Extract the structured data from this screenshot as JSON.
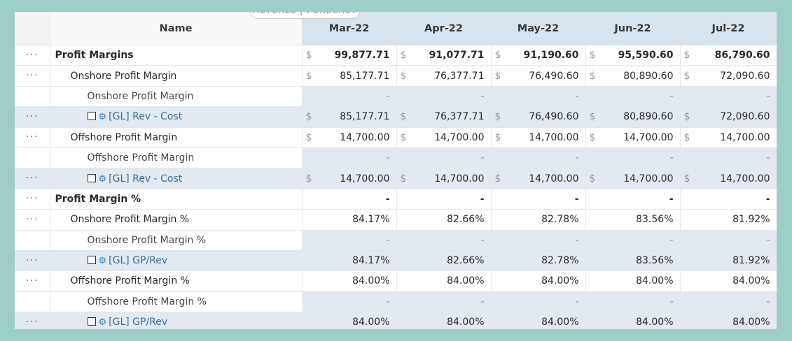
{
  "toggle": {
    "label": "ACTUALS | FORECAST"
  },
  "header": {
    "name_label": "Name",
    "months": [
      "Mar-22",
      "Apr-22",
      "May-22",
      "Jun-22",
      "Jul-22"
    ]
  },
  "row_menu_label": "···",
  "currency_symbol": "$",
  "rows": [
    {
      "label": "Profit Margins",
      "level": 0,
      "menu": true,
      "style": "plain",
      "currency": true,
      "bold": true,
      "values": [
        "99,877.71",
        "91,077.71",
        "91,190.60",
        "95,590.60",
        "86,790.60"
      ]
    },
    {
      "label": "Onshore Profit Margin",
      "level": 1,
      "menu": true,
      "style": "plain",
      "currency": true,
      "bold": false,
      "values": [
        "85,177.71",
        "76,377.71",
        "76,490.60",
        "80,890.60",
        "72,090.60"
      ]
    },
    {
      "label": "Onshore Profit Margin",
      "level": 2,
      "menu": false,
      "style": "sub",
      "currency": false,
      "bold": false,
      "values": [
        "-",
        "-",
        "-",
        "-",
        "-"
      ]
    },
    {
      "label": "[GL] Rev - Cost",
      "level": 3,
      "menu": true,
      "style": "blue",
      "currency": true,
      "bold": false,
      "values": [
        "85,177.71",
        "76,377.71",
        "76,490.60",
        "80,890.60",
        "72,090.60"
      ]
    },
    {
      "label": "Offshore Profit Margin",
      "level": 1,
      "menu": true,
      "style": "plain",
      "currency": true,
      "bold": false,
      "values": [
        "14,700.00",
        "14,700.00",
        "14,700.00",
        "14,700.00",
        "14,700.00"
      ]
    },
    {
      "label": "Offshore Profit Margin",
      "level": 2,
      "menu": false,
      "style": "sub",
      "currency": false,
      "bold": false,
      "values": [
        "-",
        "-",
        "-",
        "-",
        "-"
      ]
    },
    {
      "label": "[GL] Rev - Cost",
      "level": 3,
      "menu": true,
      "style": "blue",
      "currency": true,
      "bold": false,
      "values": [
        "14,700.00",
        "14,700.00",
        "14,700.00",
        "14,700.00",
        "14,700.00"
      ]
    },
    {
      "label": "Profit Margin %",
      "level": 0,
      "menu": true,
      "style": "plain",
      "currency": false,
      "bold": true,
      "values": [
        "-",
        "-",
        "-",
        "-",
        "-"
      ]
    },
    {
      "label": "Onshore Profit Margin %",
      "level": 1,
      "menu": true,
      "style": "plain",
      "currency": false,
      "bold": false,
      "values": [
        "84.17%",
        "82.66%",
        "82.78%",
        "83.56%",
        "81.92%"
      ]
    },
    {
      "label": "Onshore Profit Margin %",
      "level": 2,
      "menu": false,
      "style": "sub",
      "currency": false,
      "bold": false,
      "values": [
        "-",
        "-",
        "-",
        "-",
        "-"
      ]
    },
    {
      "label": "[GL] GP/Rev",
      "level": 3,
      "menu": true,
      "style": "blue",
      "currency": false,
      "bold": false,
      "values": [
        "84.17%",
        "82.66%",
        "82.78%",
        "83.56%",
        "81.92%"
      ]
    },
    {
      "label": "Offshore Profit Margin %",
      "level": 1,
      "menu": true,
      "style": "plain",
      "currency": false,
      "bold": false,
      "values": [
        "84.00%",
        "84.00%",
        "84.00%",
        "84.00%",
        "84.00%"
      ]
    },
    {
      "label": "Offshore Profit Margin %",
      "level": 2,
      "menu": false,
      "style": "sub",
      "currency": false,
      "bold": false,
      "values": [
        "-",
        "-",
        "-",
        "-",
        "-"
      ]
    },
    {
      "label": "[GL] GP/Rev",
      "level": 3,
      "menu": true,
      "style": "blue",
      "currency": false,
      "bold": false,
      "values": [
        "84.00%",
        "84.00%",
        "84.00%",
        "84.00%",
        "84.00%"
      ]
    }
  ]
}
